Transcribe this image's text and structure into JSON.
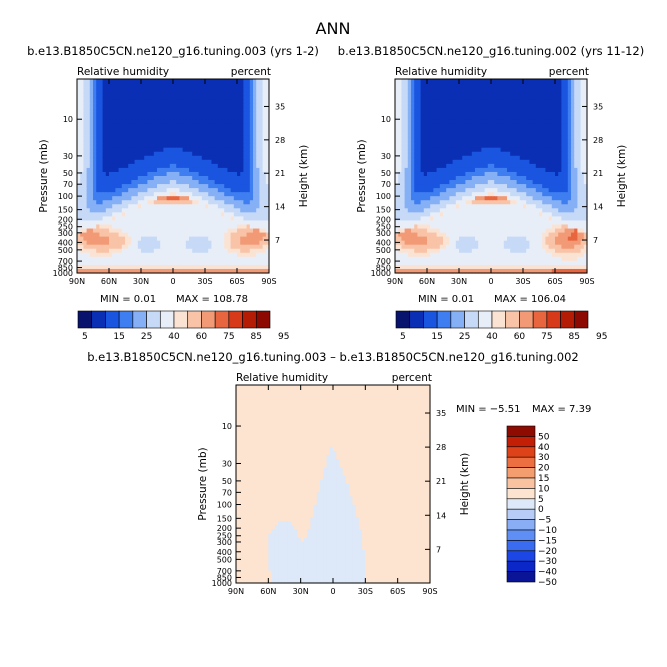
{
  "page_title": "ANN",
  "chart_data": [
    {
      "type": "heatmap",
      "title": "b.e13.B1850C5CN.ne120_g16.tuning.003 (yrs 1-2)",
      "subtitle_left": "Relative humidity",
      "subtitle_right": "percent",
      "ylabel": "Pressure (mb)",
      "ylabel_right": "Height (km)",
      "x_ticks": [
        "90N",
        "60N",
        "30N",
        "0",
        "30S",
        "60S",
        "90S"
      ],
      "y_ticks": [
        "10",
        "30",
        "50",
        "70",
        "100",
        "150",
        "200",
        "250",
        "300",
        "400",
        "500",
        "700",
        "850",
        "1000"
      ],
      "y_ticks_right": [
        "35",
        "28",
        "21",
        "14",
        "7"
      ],
      "min_label": "MIN =    0.01",
      "max_label": "MAX = 108.78",
      "colorbar_levels": [
        "5",
        "15",
        "25",
        "40",
        "60",
        "75",
        "85",
        "95"
      ],
      "field": "model_rh_a"
    },
    {
      "type": "heatmap",
      "title": "b.e13.B1850C5CN.ne120_g16.tuning.002 (yrs 11-12)",
      "subtitle_left": "Relative humidity",
      "subtitle_right": "percent",
      "ylabel": "Pressure (mb)",
      "ylabel_right": "Height (km)",
      "x_ticks": [
        "90N",
        "60N",
        "30N",
        "0",
        "30S",
        "60S",
        "90S"
      ],
      "y_ticks": [
        "10",
        "30",
        "50",
        "70",
        "100",
        "150",
        "200",
        "250",
        "300",
        "400",
        "500",
        "700",
        "850",
        "1000"
      ],
      "y_ticks_right": [
        "35",
        "28",
        "21",
        "14",
        "7"
      ],
      "min_label": "MIN =    0.01",
      "max_label": "MAX = 106.04",
      "colorbar_levels": [
        "5",
        "15",
        "25",
        "40",
        "60",
        "75",
        "85",
        "95"
      ],
      "field": "model_rh_b"
    },
    {
      "type": "heatmap",
      "title": "b.e13.B1850C5CN.ne120_g16.tuning.003 – b.e13.B1850C5CN.ne120_g16.tuning.002",
      "subtitle_left": "Relative humidity",
      "subtitle_right": "percent",
      "ylabel": "Pressure (mb)",
      "ylabel_right": "Height (km)",
      "x_ticks": [
        "90N",
        "60N",
        "30N",
        "0",
        "30S",
        "60S",
        "90S"
      ],
      "y_ticks": [
        "10",
        "30",
        "50",
        "70",
        "100",
        "150",
        "200",
        "250",
        "300",
        "400",
        "500",
        "700",
        "850",
        "1000"
      ],
      "y_ticks_right": [
        "35",
        "28",
        "21",
        "14",
        "7"
      ],
      "min_label": "MIN =    −5.51",
      "max_label": "MAX =    7.39",
      "colorbar_levels": [
        "50",
        "40",
        "30",
        "20",
        "15",
        "10",
        "5",
        "0",
        "−5",
        "−10",
        "−15",
        "−20",
        "−30",
        "−40",
        "−50"
      ],
      "field": "difference"
    }
  ],
  "colors": {
    "rh_scale": [
      "#08136e",
      "#0a2fb4",
      "#1a55e0",
      "#3f7ef0",
      "#86b0f5",
      "#c6d9f7",
      "#e8eef8",
      "#fbe3d4",
      "#f8c3a6",
      "#f29a76",
      "#e8663f",
      "#d63a19",
      "#b51c06",
      "#8c0a02"
    ],
    "diff_scale": [
      "#0a1496",
      "#0c27c8",
      "#1c46e6",
      "#3a6cf1",
      "#5f8ff4",
      "#89aef6",
      "#b7cdf7",
      "#dde8f8",
      "#fde4d0",
      "#f9c2a0",
      "#f49d6f",
      "#ec6f41",
      "#de4218",
      "#c31f06",
      "#8e0b02"
    ]
  }
}
